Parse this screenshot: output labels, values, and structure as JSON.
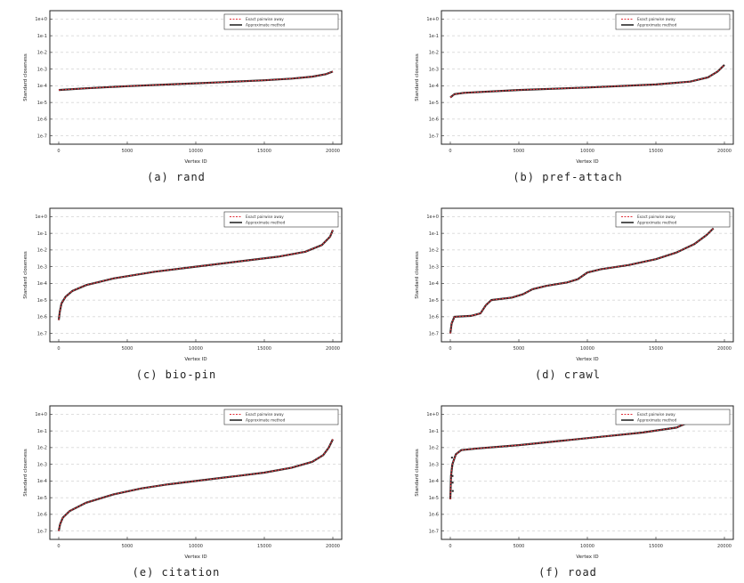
{
  "figure": {
    "legend": [
      "Exact pairwise away",
      "Approximate method"
    ],
    "xlabel": "Vertex ID",
    "ylabel": "Standard closeness"
  },
  "chart_data": [
    {
      "id": "rand",
      "type": "line",
      "caption": "(a) rand",
      "x_ticks": [
        "0",
        "5000",
        "10000",
        "15000",
        "20000"
      ],
      "y_ticks": [
        "1e-7",
        "1e-6",
        "1e-5",
        "1e-4",
        "1e-3",
        "1e-2",
        "1e-1",
        "1e+0"
      ],
      "series": [
        {
          "name": "Exact pairwise away",
          "color": "#e0303a",
          "points": [
            [
              0,
              2.75
            ],
            [
              2000,
              2.85
            ],
            [
              5000,
              2.98
            ],
            [
              8000,
              3.08
            ],
            [
              10000,
              3.15
            ],
            [
              12000,
              3.22
            ],
            [
              15000,
              3.33
            ],
            [
              17000,
              3.43
            ],
            [
              18500,
              3.55
            ],
            [
              19500,
              3.7
            ],
            [
              20000,
              3.85
            ]
          ]
        }
      ]
    },
    {
      "id": "pref-attach",
      "type": "line",
      "caption": "(b) pref-attach",
      "x_ticks": [
        "0",
        "5000",
        "10000",
        "15000",
        "20000"
      ],
      "y_ticks": [
        "1e-7",
        "1e-6",
        "1e-5",
        "1e-4",
        "1e-3",
        "1e-2",
        "1e-1",
        "1e+0"
      ],
      "series": [
        {
          "name": "Exact pairwise away",
          "color": "#e0303a",
          "points": [
            [
              0,
              2.3
            ],
            [
              300,
              2.5
            ],
            [
              1000,
              2.58
            ],
            [
              5000,
              2.75
            ],
            [
              10000,
              2.9
            ],
            [
              15000,
              3.08
            ],
            [
              17500,
              3.25
            ],
            [
              18800,
              3.5
            ],
            [
              19500,
              3.85
            ],
            [
              20000,
              4.25
            ]
          ]
        }
      ]
    },
    {
      "id": "bio-pin",
      "type": "line",
      "caption": "(c) bio-pin",
      "x_ticks": [
        "0",
        "5000",
        "10000",
        "15000",
        "20000"
      ],
      "y_ticks": [
        "1e-7",
        "1e-6",
        "1e-5",
        "1e-4",
        "1e-3",
        "1e-2",
        "1e-1",
        "1e+0"
      ],
      "series": [
        {
          "name": "Exact pairwise away",
          "color": "#e0303a",
          "points": [
            [
              0,
              0.8
            ],
            [
              80,
              1.3
            ],
            [
              200,
              1.8
            ],
            [
              500,
              2.2
            ],
            [
              1000,
              2.55
            ],
            [
              2000,
              2.9
            ],
            [
              4000,
              3.3
            ],
            [
              7000,
              3.7
            ],
            [
              10000,
              4.0
            ],
            [
              13000,
              4.3
            ],
            [
              16000,
              4.6
            ],
            [
              18000,
              4.9
            ],
            [
              19200,
              5.3
            ],
            [
              19800,
              5.8
            ],
            [
              20000,
              6.2
            ]
          ]
        }
      ]
    },
    {
      "id": "crawl",
      "type": "line",
      "caption": "(d) crawl",
      "x_ticks": [
        "0",
        "5000",
        "10000",
        "15000",
        "20000"
      ],
      "y_ticks": [
        "1e-7",
        "1e-6",
        "1e-5",
        "1e-4",
        "1e-3",
        "1e-2",
        "1e-1",
        "1e+0"
      ],
      "series": [
        {
          "name": "Exact pairwise away",
          "color": "#e0303a",
          "points": [
            [
              0,
              0.0
            ],
            [
              100,
              0.6
            ],
            [
              300,
              1.0
            ],
            [
              1500,
              1.05
            ],
            [
              2200,
              1.2
            ],
            [
              2600,
              1.7
            ],
            [
              3000,
              2.0
            ],
            [
              4500,
              2.15
            ],
            [
              5300,
              2.35
            ],
            [
              6000,
              2.65
            ],
            [
              7000,
              2.85
            ],
            [
              8500,
              3.05
            ],
            [
              9300,
              3.25
            ],
            [
              10000,
              3.65
            ],
            [
              11000,
              3.85
            ],
            [
              13000,
              4.1
            ],
            [
              15000,
              4.45
            ],
            [
              16500,
              4.85
            ],
            [
              17800,
              5.35
            ],
            [
              18700,
              5.9
            ],
            [
              19200,
              6.3
            ]
          ]
        }
      ]
    },
    {
      "id": "citation",
      "type": "line",
      "caption": "(e) citation",
      "x_ticks": [
        "0",
        "5000",
        "10000",
        "15000",
        "20000"
      ],
      "y_ticks": [
        "1e-7",
        "1e-6",
        "1e-5",
        "1e-4",
        "1e-3",
        "1e-2",
        "1e-1",
        "1e+0"
      ],
      "series": [
        {
          "name": "Exact pairwise away",
          "color": "#e0303a",
          "points": [
            [
              0,
              0.0
            ],
            [
              100,
              0.4
            ],
            [
              300,
              0.8
            ],
            [
              800,
              1.2
            ],
            [
              2000,
              1.7
            ],
            [
              4000,
              2.2
            ],
            [
              6000,
              2.55
            ],
            [
              8000,
              2.8
            ],
            [
              10000,
              3.0
            ],
            [
              13000,
              3.3
            ],
            [
              15000,
              3.5
            ],
            [
              17000,
              3.8
            ],
            [
              18500,
              4.15
            ],
            [
              19300,
              4.55
            ],
            [
              19700,
              5.0
            ],
            [
              20000,
              5.5
            ]
          ]
        }
      ]
    },
    {
      "id": "road",
      "type": "line",
      "caption": "(f) road",
      "x_ticks": [
        "0",
        "5000",
        "10000",
        "15000",
        "20000"
      ],
      "y_ticks": [
        "1e-7",
        "1e-6",
        "1e-5",
        "1e-4",
        "1e-3",
        "1e-2",
        "1e-1",
        "1e+0"
      ],
      "series": [
        {
          "name": "Exact pairwise away",
          "color": "#e0303a",
          "points": [
            [
              0,
              1.9
            ],
            [
              50,
              3.3
            ],
            [
              150,
              4.0
            ],
            [
              400,
              4.6
            ],
            [
              800,
              4.85
            ],
            [
              2000,
              4.95
            ],
            [
              5000,
              5.15
            ],
            [
              8000,
              5.4
            ],
            [
              11000,
              5.65
            ],
            [
              14000,
              5.9
            ],
            [
              16500,
              6.2
            ],
            [
              17500,
              6.55
            ]
          ]
        }
      ],
      "outliers": [
        [
          120,
          4.4
        ],
        [
          140,
          3.9
        ],
        [
          160,
          3.3
        ],
        [
          170,
          2.9
        ],
        [
          180,
          2.4
        ]
      ]
    }
  ]
}
